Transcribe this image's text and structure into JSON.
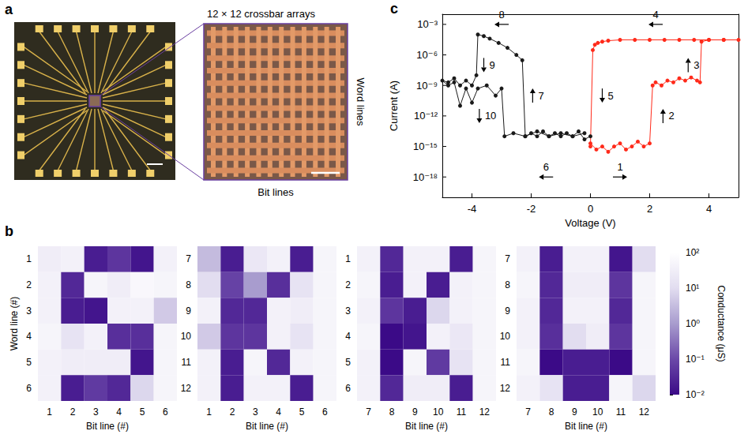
{
  "panel_a": {
    "type": "diagram",
    "panel_label": "a",
    "title": "12 × 12 crossbar arrays",
    "right_label": "Word lines",
    "bottom_label": "Bit lines"
  },
  "chart_data": [
    {
      "type": "heatmap",
      "panel_label": "b",
      "xlabel": "Bit line (#)",
      "ylabel": "Word line (#)",
      "colorbar": {
        "label": "Conductance (μS)",
        "log": true,
        "range": [
          0.01,
          100
        ],
        "ticks": [
          {
            "value": 0.01,
            "label": "10⁻²"
          },
          {
            "value": 0.1,
            "label": "10⁻¹"
          },
          {
            "value": 1,
            "label": "10⁰"
          },
          {
            "value": 10,
            "label": "10¹"
          },
          {
            "value": 100,
            "label": "10²"
          }
        ],
        "colors": [
          "#3b0a87",
          "#6b48a8",
          "#a89cce",
          "#e2ddf0",
          "#ffffff"
        ]
      },
      "panels": [
        {
          "x": [
            1,
            2,
            3,
            4,
            5,
            6
          ],
          "y": [
            1,
            2,
            3,
            4,
            5,
            6
          ],
          "cells": [
            [
              30,
              40,
              0.02,
              0.05,
              0.015,
              40
            ],
            [
              40,
              0.03,
              50,
              30,
              60,
              50
            ],
            [
              40,
              0.02,
              0.015,
              40,
              40,
              5
            ],
            [
              50,
              15,
              40,
              0.04,
              0.04,
              50
            ],
            [
              40,
              30,
              30,
              30,
              0.015,
              50
            ],
            [
              40,
              0.02,
              0.06,
              0.03,
              8,
              50
            ]
          ]
        },
        {
          "x": [
            1,
            2,
            3,
            4,
            5,
            6
          ],
          "y": [
            7,
            8,
            9,
            10,
            11,
            12
          ],
          "cells": [
            [
              3,
              0.02,
              20,
              40,
              0.02,
              50
            ],
            [
              10,
              0.08,
              1,
              0.04,
              15,
              50
            ],
            [
              40,
              0.03,
              0.03,
              40,
              30,
              50
            ],
            [
              5,
              0.05,
              0.05,
              40,
              15,
              50
            ],
            [
              40,
              0.02,
              50,
              0.03,
              40,
              50
            ],
            [
              40,
              0.02,
              40,
              40,
              0.02,
              50
            ]
          ]
        },
        {
          "x": [
            7,
            8,
            9,
            10,
            11,
            12
          ],
          "y": [
            1,
            2,
            3,
            4,
            5,
            6
          ],
          "cells": [
            [
              40,
              0.03,
              40,
              40,
              0.02,
              50
            ],
            [
              50,
              0.02,
              40,
              0.02,
              40,
              50
            ],
            [
              40,
              0.05,
              0.02,
              8,
              40,
              50
            ],
            [
              50,
              0.01,
              0.015,
              40,
              20,
              50
            ],
            [
              40,
              0.01,
              50,
              0.06,
              15,
              50
            ],
            [
              40,
              0.03,
              30,
              30,
              0.02,
              50
            ]
          ]
        },
        {
          "x": [
            7,
            8,
            9,
            10,
            11,
            12
          ],
          "y": [
            7,
            8,
            9,
            10,
            11,
            12
          ],
          "cells": [
            [
              40,
              0.02,
              40,
              40,
              0.015,
              10
            ],
            [
              50,
              0.03,
              30,
              30,
              0.05,
              50
            ],
            [
              40,
              0.03,
              40,
              40,
              0.03,
              50
            ],
            [
              40,
              0.04,
              10,
              30,
              0.05,
              50
            ],
            [
              50,
              0.01,
              0.02,
              0.02,
              0.01,
              50
            ],
            [
              40,
              15,
              0.02,
              0.02,
              50,
              8
            ]
          ]
        }
      ]
    },
    {
      "type": "line",
      "panel_label": "c",
      "log": "y",
      "marker": "circle",
      "xlabel": "Voltage (V)",
      "ylabel": "Current (A)",
      "xlim": [
        -5,
        5
      ],
      "xticks": [
        -4,
        -2,
        0,
        2,
        4
      ],
      "ylim": [
        1e-20,
        0.01
      ],
      "yticks": [
        {
          "value": 1e-18,
          "label": "10⁻¹⁸"
        },
        {
          "value": 1e-15,
          "label": "10⁻¹⁵"
        },
        {
          "value": 1e-12,
          "label": "10⁻¹²"
        },
        {
          "value": 1e-09,
          "label": "10⁻⁹"
        },
        {
          "value": 1e-06,
          "label": "10⁻⁶"
        },
        {
          "value": 0.001,
          "label": "10⁻³"
        }
      ],
      "series": [
        {
          "color": "#ff2a1a",
          "x": [
            0,
            0.2,
            0.4,
            0.6,
            0.8,
            1.0,
            1.2,
            1.4,
            1.6,
            1.8,
            2.0,
            2.1,
            2.2,
            2.4,
            2.6,
            2.8,
            3.0,
            3.2,
            3.4,
            3.6,
            3.7,
            3.75,
            4.0,
            4.5,
            5.0,
            4.5,
            4.0,
            3.5,
            3.0,
            2.5,
            2.0,
            1.5,
            1.0,
            0.6,
            0.4,
            0.25,
            0.15,
            0.08,
            0.0
          ],
          "values": [
            2e-15,
            5e-16,
            1e-15,
            3e-16,
            1e-15,
            2e-15,
            5e-16,
            1e-15,
            3e-15,
            1e-15,
            2e-15,
            1e-09,
            2e-09,
            1e-09,
            3e-09,
            2e-09,
            5e-09,
            3e-09,
            6e-09,
            3e-09,
            2e-09,
            2e-05,
            3e-05,
            3e-05,
            3e-05,
            3e-05,
            3e-05,
            3e-05,
            3e-05,
            3e-05,
            3e-05,
            3e-05,
            3e-05,
            2.5e-05,
            2e-05,
            1.5e-05,
            1e-05,
            3e-06,
            1e-15
          ]
        },
        {
          "color": "#1a1a1a",
          "x": [
            0,
            -0.2,
            -0.4,
            -0.6,
            -0.8,
            -1.0,
            -1.2,
            -1.4,
            -1.6,
            -1.8,
            -2.0,
            -2.2,
            -2.3,
            -2.5,
            -2.8,
            -3.1,
            -3.4,
            -3.6,
            -3.8,
            -3.85,
            -4.0,
            -4.2,
            -4.4,
            -4.6,
            -4.8,
            -5.0,
            -4.8,
            -4.6,
            -4.4,
            -4.2,
            -4.0,
            -3.8,
            -3.5,
            -3.2,
            -3.0,
            -2.9,
            -2.6,
            -2.2,
            -1.8,
            -1.4,
            -1.0,
            -0.6,
            -0.2
          ],
          "values": [
            1e-14,
            5e-15,
            3e-14,
            1e-14,
            2e-14,
            1e-14,
            2e-14,
            1e-14,
            3e-14,
            1e-14,
            2e-14,
            1e-14,
            3e-07,
            1e-06,
            5e-06,
            1.5e-05,
            4e-05,
            7e-05,
            0.0001,
            1e-08,
            1e-09,
            3e-09,
            1e-09,
            5e-09,
            2e-09,
            3e-09,
            1e-09,
            2e-09,
            1e-11,
            5e-10,
            2e-11,
            5e-10,
            1e-09,
            1e-10,
            5e-10,
            1e-14,
            2e-14,
            1e-14,
            3e-14,
            1e-14,
            2e-14,
            1e-14,
            2e-14
          ]
        }
      ],
      "annotations": [
        {
          "text": "1",
          "x": 1.0,
          "y": 1e-18,
          "arrow": "right"
        },
        {
          "text": "2",
          "x": 2.45,
          "y": 1e-12,
          "arrow": "up"
        },
        {
          "text": "3",
          "x": 3.3,
          "y": 1e-07,
          "arrow": "up"
        },
        {
          "text": "4",
          "x": 2.2,
          "y": 0.001,
          "arrow": "left"
        },
        {
          "text": "5",
          "x": 0.4,
          "y": 1e-10,
          "arrow": "down"
        },
        {
          "text": "6",
          "x": -1.5,
          "y": 1e-18,
          "arrow": "left"
        },
        {
          "text": "7",
          "x": -1.95,
          "y": 1e-10,
          "arrow": "up"
        },
        {
          "text": "8",
          "x": -3.0,
          "y": 0.001,
          "arrow": "left"
        },
        {
          "text": "9",
          "x": -3.6,
          "y": 1e-07,
          "arrow": "down"
        },
        {
          "text": "10",
          "x": -3.75,
          "y": 1e-12,
          "arrow": "down"
        }
      ]
    }
  ]
}
